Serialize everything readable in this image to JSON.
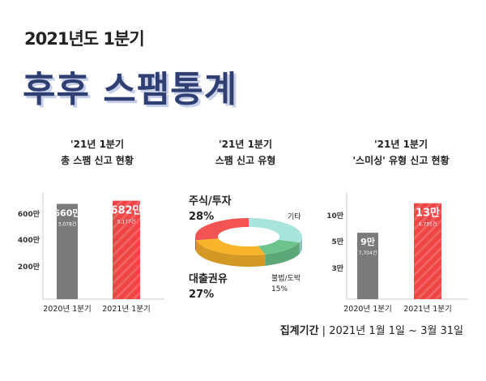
{
  "header": {
    "subtitle": "2021년도 1분기",
    "title": "후후 스팸통계"
  },
  "chart_data": [
    {
      "type": "bar",
      "title": "'21년 1분기\n총 스팸 신고 현황",
      "title_lines": [
        "'21년 1분기",
        "총 스팸 신고 현황"
      ],
      "categories": [
        "2020년 1분기",
        "2021년 1분기"
      ],
      "values": [
        660,
        682
      ],
      "value_labels": [
        "660만",
        "682만"
      ],
      "sub_labels": [
        "3,078건",
        "5,177건"
      ],
      "yticks": [
        "200만",
        "400만",
        "600만"
      ],
      "ytick_values": [
        200,
        400,
        600
      ],
      "colors": [
        "#7a7a7a",
        "#ee4444"
      ]
    },
    {
      "type": "pie",
      "title_lines": [
        "'21년 1분기",
        "스팸 신고 유형"
      ],
      "slices": [
        {
          "label": "기타",
          "value": 30,
          "pct": "",
          "color": "#a9e4dc"
        },
        {
          "label": "불법/도박",
          "value": 15,
          "pct": "15%",
          "color": "#6cc48c"
        },
        {
          "label": "대출권유",
          "value": 27,
          "pct": "27%",
          "color": "#f8b42a"
        },
        {
          "label": "주식/투자",
          "value": 28,
          "pct": "28%",
          "color": "#f25454"
        }
      ]
    },
    {
      "type": "bar",
      "title_lines": [
        "'21년 1분기",
        "'스미싱' 유형 신고 현황"
      ],
      "categories": [
        "2020년 1분기",
        "2021년 1분기"
      ],
      "values": [
        9,
        13
      ],
      "value_labels": [
        "9만",
        "13만"
      ],
      "sub_labels": [
        "7,704건",
        "6,731건"
      ],
      "yticks": [
        "3만",
        "5만",
        "10만"
      ],
      "ytick_values": [
        3,
        5,
        10
      ],
      "colors": [
        "#7a7a7a",
        "#ee4444"
      ]
    }
  ],
  "footer": {
    "period_label": "집계기간",
    "separator": "|",
    "period_value": "2021년 1월 1일 ~ 3월 31일"
  }
}
